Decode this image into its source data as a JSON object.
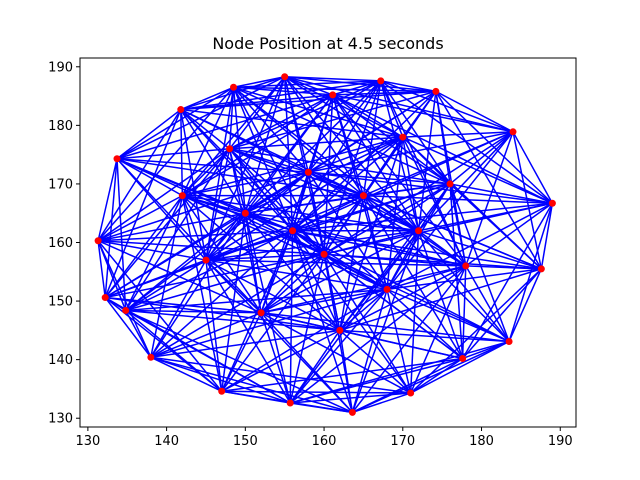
{
  "chart_data": {
    "type": "scatter",
    "title": "Node Position at 4.5 seconds",
    "xlabel": "",
    "ylabel": "",
    "xlim": [
      129,
      192
    ],
    "ylim": [
      128.5,
      191.5
    ],
    "xticks": [
      130,
      140,
      150,
      160,
      170,
      180,
      190
    ],
    "yticks": [
      130,
      140,
      150,
      160,
      170,
      180,
      190
    ],
    "grid": false,
    "legend": "none",
    "node_color": "#ff0000",
    "edge_color": "#0000ff",
    "nodes": [
      {
        "x": 155.0,
        "y": 188.3
      },
      {
        "x": 167.2,
        "y": 187.6
      },
      {
        "x": 148.5,
        "y": 186.5
      },
      {
        "x": 174.2,
        "y": 185.8
      },
      {
        "x": 161.1,
        "y": 185.2
      },
      {
        "x": 141.8,
        "y": 182.7
      },
      {
        "x": 184.0,
        "y": 178.9
      },
      {
        "x": 133.7,
        "y": 174.3
      },
      {
        "x": 189.0,
        "y": 166.7
      },
      {
        "x": 131.3,
        "y": 160.3
      },
      {
        "x": 187.6,
        "y": 155.5
      },
      {
        "x": 132.2,
        "y": 150.6
      },
      {
        "x": 134.8,
        "y": 148.4
      },
      {
        "x": 183.5,
        "y": 143.1
      },
      {
        "x": 138.0,
        "y": 140.4
      },
      {
        "x": 177.6,
        "y": 140.2
      },
      {
        "x": 147.0,
        "y": 134.6
      },
      {
        "x": 171.0,
        "y": 134.3
      },
      {
        "x": 155.7,
        "y": 132.6
      },
      {
        "x": 163.6,
        "y": 131.0
      },
      {
        "x": 158.0,
        "y": 172.0
      },
      {
        "x": 165.0,
        "y": 168.0
      },
      {
        "x": 150.0,
        "y": 165.0
      },
      {
        "x": 172.0,
        "y": 162.0
      },
      {
        "x": 145.0,
        "y": 157.0
      },
      {
        "x": 160.0,
        "y": 158.0
      },
      {
        "x": 168.0,
        "y": 152.0
      },
      {
        "x": 152.0,
        "y": 148.0
      },
      {
        "x": 176.0,
        "y": 170.0
      },
      {
        "x": 142.0,
        "y": 168.0
      },
      {
        "x": 162.0,
        "y": 145.0
      },
      {
        "x": 178.0,
        "y": 156.0
      },
      {
        "x": 148.0,
        "y": 176.0
      },
      {
        "x": 170.0,
        "y": 178.0
      },
      {
        "x": 156.0,
        "y": 162.0
      }
    ]
  }
}
